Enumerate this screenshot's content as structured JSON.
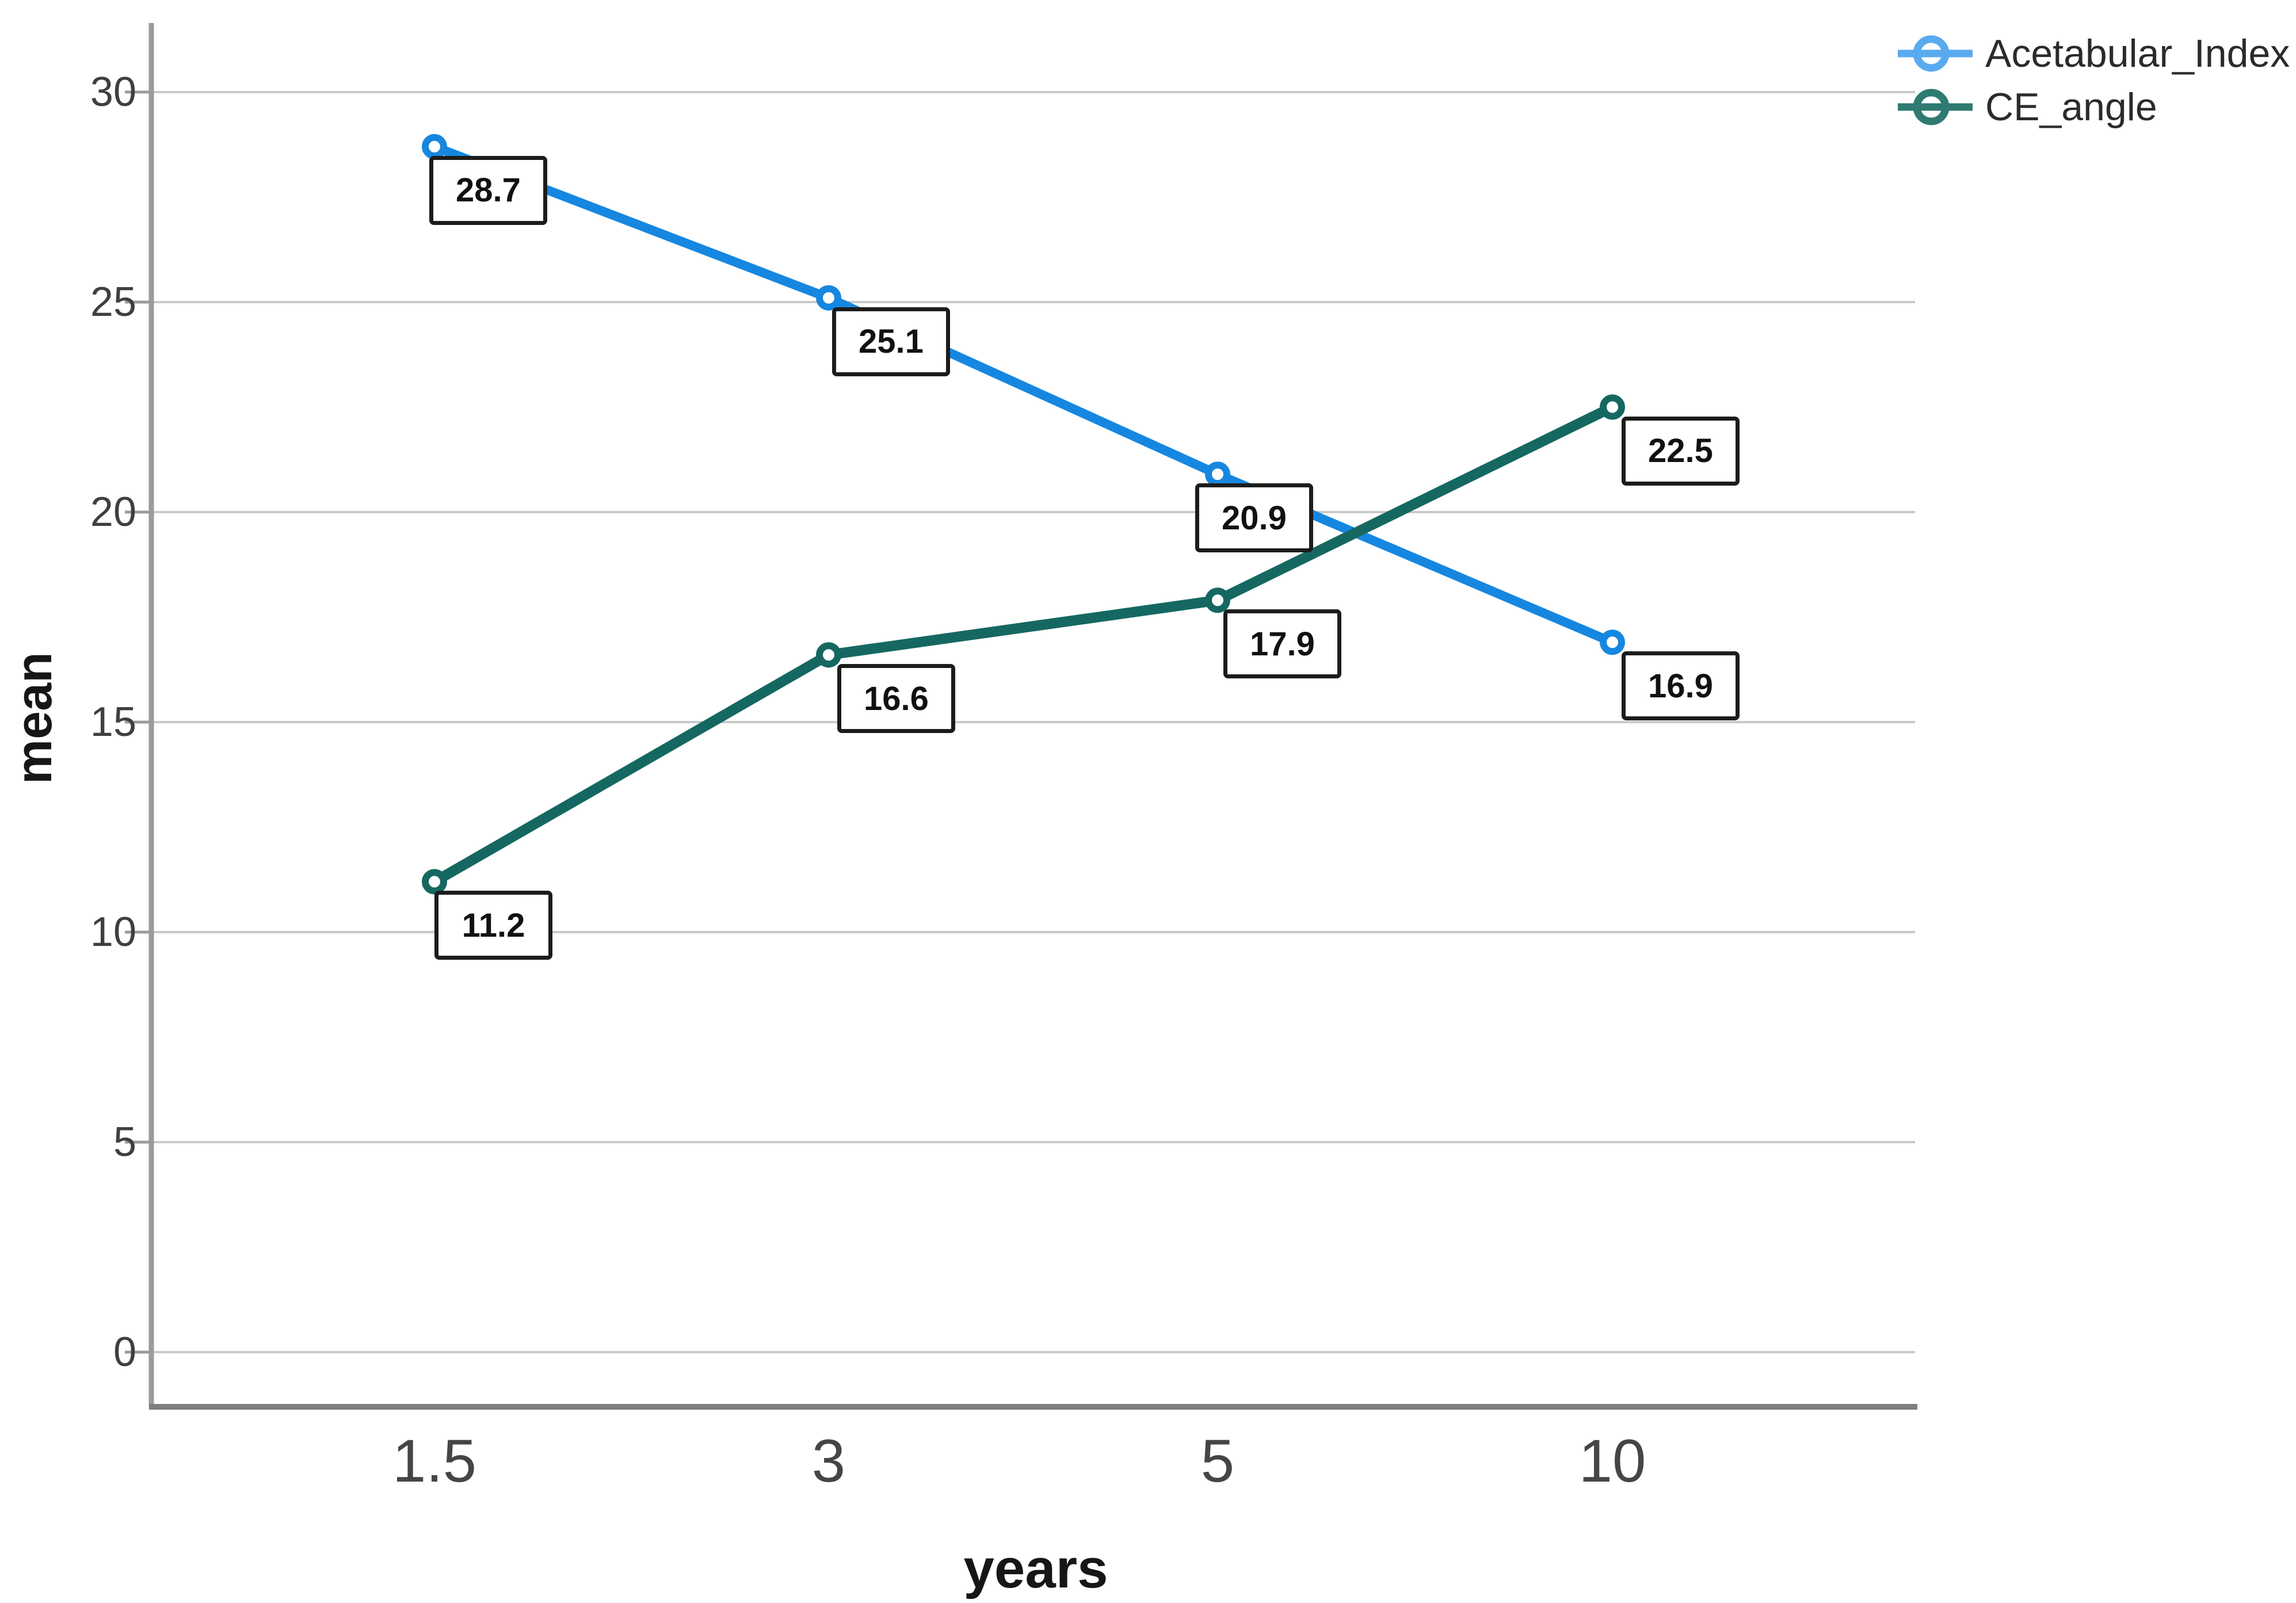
{
  "chart_data": {
    "type": "line",
    "title": "",
    "xlabel": "years",
    "ylabel": "mean",
    "x_categories": [
      "1.5",
      "3",
      "5",
      "10"
    ],
    "yticks": [
      0,
      5,
      10,
      15,
      20,
      25,
      30
    ],
    "ylim": [
      0,
      32
    ],
    "grid": true,
    "legend_position": "top-right",
    "series": [
      {
        "name": "Acetabular_Index",
        "color": "#1687e0",
        "legend_color": "#5aaaf0",
        "line_width": 16,
        "values": [
          28.7,
          25.1,
          20.9,
          16.9
        ],
        "labels": [
          "28.7",
          "25.1",
          "20.9",
          "16.9"
        ],
        "label_offsets_x": [
          -9,
          6,
          -39,
          16
        ]
      },
      {
        "name": "CE_angle",
        "color": "#156861",
        "legend_color": "#2e7b72",
        "line_width": 18,
        "values": [
          11.2,
          16.6,
          17.9,
          22.5
        ],
        "labels": [
          "11.2",
          "16.6",
          "17.9",
          "22.5"
        ],
        "label_offsets_x": [
          0,
          15,
          10,
          16
        ]
      }
    ]
  },
  "colors": {
    "gridline": "#c9c9c9",
    "y_axis_line": "#9b9b9b",
    "x_axis_line": "#7e7e7e",
    "tick_text": "#3f3f3f",
    "label_box_border": "#1c1c1c",
    "label_box_bg": "#ffffff"
  }
}
